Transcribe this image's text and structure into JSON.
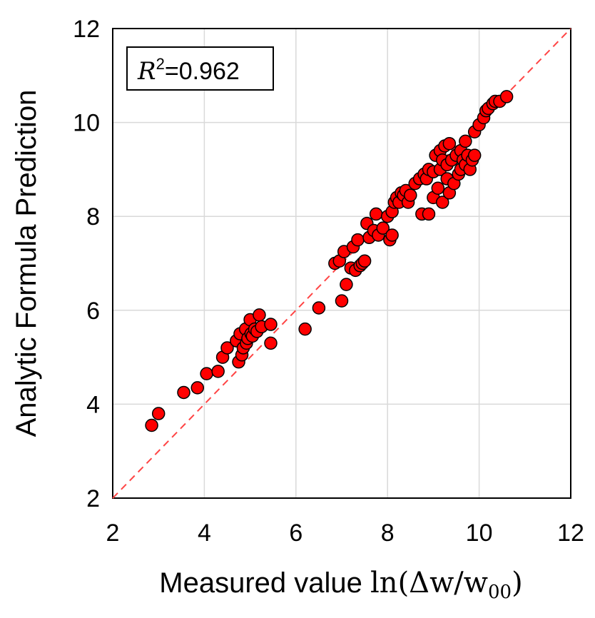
{
  "chart_data": {
    "type": "scatter",
    "title": "",
    "xlabel_text": "Measured value ",
    "xlabel_math": "ln(Δw/w",
    "xlabel_sub": "00",
    "xlabel_close": ")",
    "ylabel": "Analytic Formula Prediction",
    "xlim": [
      2,
      12
    ],
    "ylim": [
      2,
      12
    ],
    "xticks": [
      2,
      4,
      6,
      8,
      10,
      12
    ],
    "yticks": [
      2,
      4,
      6,
      8,
      10,
      12
    ],
    "grid": true,
    "annotation": {
      "r2_symbol": "R",
      "r2_exp": "2",
      "r2_value": "=0.962"
    },
    "reference_line": {
      "style": "dashed",
      "color": "#ff4444",
      "from": [
        2,
        2
      ],
      "to": [
        12,
        12
      ]
    },
    "marker_color": "#ff0000",
    "marker_edge": "#000000",
    "points": [
      [
        2.85,
        3.55
      ],
      [
        3.0,
        3.8
      ],
      [
        3.55,
        4.25
      ],
      [
        3.85,
        4.35
      ],
      [
        4.05,
        4.65
      ],
      [
        4.3,
        4.7
      ],
      [
        4.4,
        5.0
      ],
      [
        4.5,
        5.2
      ],
      [
        4.7,
        5.35
      ],
      [
        4.75,
        4.9
      ],
      [
        4.78,
        5.5
      ],
      [
        4.82,
        5.05
      ],
      [
        4.85,
        5.2
      ],
      [
        4.9,
        5.6
      ],
      [
        4.92,
        5.3
      ],
      [
        4.95,
        5.4
      ],
      [
        5.0,
        5.8
      ],
      [
        5.02,
        5.5
      ],
      [
        5.05,
        5.45
      ],
      [
        5.1,
        5.6
      ],
      [
        5.15,
        5.55
      ],
      [
        5.2,
        5.9
      ],
      [
        5.25,
        5.65
      ],
      [
        5.45,
        5.7
      ],
      [
        5.45,
        5.3
      ],
      [
        6.2,
        5.6
      ],
      [
        6.5,
        6.05
      ],
      [
        6.85,
        7.0
      ],
      [
        6.95,
        7.05
      ],
      [
        7.0,
        6.2
      ],
      [
        7.05,
        7.25
      ],
      [
        7.1,
        6.55
      ],
      [
        7.2,
        6.9
      ],
      [
        7.25,
        7.35
      ],
      [
        7.3,
        6.85
      ],
      [
        7.35,
        7.5
      ],
      [
        7.4,
        6.95
      ],
      [
        7.45,
        7.0
      ],
      [
        7.5,
        7.05
      ],
      [
        7.55,
        7.85
      ],
      [
        7.6,
        7.55
      ],
      [
        7.7,
        7.7
      ],
      [
        7.75,
        8.05
      ],
      [
        7.8,
        7.6
      ],
      [
        7.9,
        7.75
      ],
      [
        8.0,
        8.0
      ],
      [
        8.05,
        7.5
      ],
      [
        8.1,
        7.6
      ],
      [
        8.1,
        8.1
      ],
      [
        8.15,
        8.3
      ],
      [
        8.2,
        8.4
      ],
      [
        8.25,
        8.3
      ],
      [
        8.3,
        8.5
      ],
      [
        8.35,
        8.45
      ],
      [
        8.4,
        8.55
      ],
      [
        8.45,
        8.3
      ],
      [
        8.5,
        8.45
      ],
      [
        8.6,
        8.7
      ],
      [
        8.7,
        8.8
      ],
      [
        8.75,
        8.05
      ],
      [
        8.8,
        8.9
      ],
      [
        8.85,
        8.8
      ],
      [
        8.9,
        9.0
      ],
      [
        8.9,
        8.05
      ],
      [
        9.0,
        8.4
      ],
      [
        9.0,
        8.95
      ],
      [
        9.05,
        9.3
      ],
      [
        9.1,
        8.6
      ],
      [
        9.15,
        9.4
      ],
      [
        9.15,
        9.0
      ],
      [
        9.2,
        8.3
      ],
      [
        9.2,
        9.2
      ],
      [
        9.25,
        9.5
      ],
      [
        9.3,
        8.8
      ],
      [
        9.3,
        9.1
      ],
      [
        9.35,
        9.55
      ],
      [
        9.35,
        8.5
      ],
      [
        9.4,
        9.2
      ],
      [
        9.45,
        8.7
      ],
      [
        9.5,
        9.3
      ],
      [
        9.55,
        8.9
      ],
      [
        9.6,
        9.4
      ],
      [
        9.6,
        9.0
      ],
      [
        9.65,
        9.2
      ],
      [
        9.7,
        9.6
      ],
      [
        9.7,
        9.1
      ],
      [
        9.75,
        9.3
      ],
      [
        9.8,
        9.0
      ],
      [
        9.85,
        9.2
      ],
      [
        9.9,
        9.3
      ],
      [
        9.9,
        9.8
      ],
      [
        10.0,
        9.95
      ],
      [
        10.1,
        10.1
      ],
      [
        10.15,
        10.25
      ],
      [
        10.2,
        10.3
      ],
      [
        10.3,
        10.4
      ],
      [
        10.35,
        10.45
      ],
      [
        10.45,
        10.45
      ],
      [
        10.6,
        10.55
      ]
    ]
  }
}
